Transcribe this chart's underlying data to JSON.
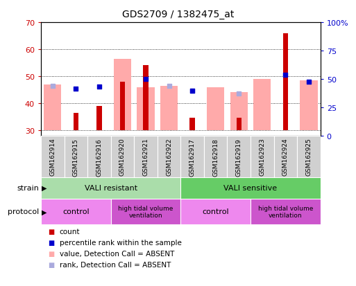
{
  "title": "GDS2709 / 1382475_at",
  "samples": [
    "GSM162914",
    "GSM162915",
    "GSM162916",
    "GSM162920",
    "GSM162921",
    "GSM162922",
    "GSM162917",
    "GSM162918",
    "GSM162919",
    "GSM162923",
    "GSM162924",
    "GSM162925"
  ],
  "count_values": [
    30,
    36.5,
    39,
    48,
    54,
    30,
    34.5,
    30,
    34.5,
    30,
    66,
    30
  ],
  "percentile_rank_left": [
    null,
    45.5,
    46.2,
    null,
    49.0,
    null,
    44.5,
    null,
    null,
    null,
    50.5,
    48.0
  ],
  "absent_value": [
    47.0,
    null,
    null,
    56.5,
    46.0,
    46.5,
    null,
    46.0,
    44.2,
    49.0,
    null,
    48.5
  ],
  "absent_rank_left": [
    46.5,
    null,
    null,
    null,
    null,
    46.5,
    44.5,
    null,
    43.5,
    null,
    null,
    null
  ],
  "ylim_left": [
    28,
    70
  ],
  "ylim_right": [
    0,
    100
  ],
  "yticks_left": [
    30,
    40,
    50,
    60,
    70
  ],
  "yticks_right": [
    0,
    25,
    50,
    75,
    100
  ],
  "ytick_labels_right": [
    "0",
    "25",
    "50",
    "75",
    "100%"
  ],
  "bar_bottom": 30,
  "count_color": "#cc0000",
  "percentile_color": "#0000cc",
  "absent_value_color": "#ffaaaa",
  "absent_rank_color": "#aaaadd",
  "strain_resistant_color": "#aaddaa",
  "strain_sensitive_color": "#66cc66",
  "protocol_control_color": "#ee88ee",
  "protocol_htv_color": "#cc55cc",
  "tick_color_left": "#cc0000",
  "tick_color_right": "#0000cc",
  "grid_color": "#000000",
  "sample_box_color": "#d0d0d0",
  "fig_bg": "#ffffff"
}
